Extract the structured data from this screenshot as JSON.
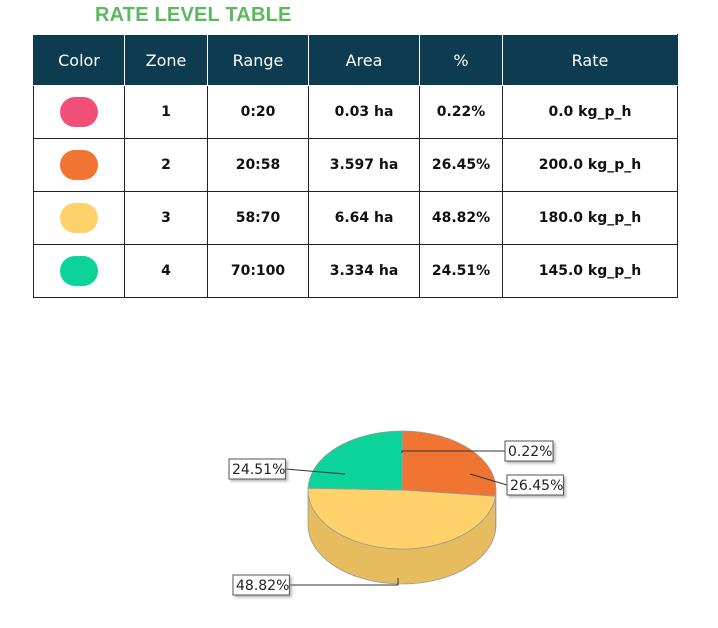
{
  "title": "RATE LEVEL TABLE",
  "table": {
    "headers": [
      "Color",
      "Zone",
      "Range",
      "Area",
      "%",
      "Rate"
    ],
    "rows": [
      {
        "color": "#f04f77",
        "zone": "1",
        "range": "0:20",
        "area": "0.03 ha",
        "pct": "0.22%",
        "rate": "0.0 kg_p_h"
      },
      {
        "color": "#f07432",
        "zone": "2",
        "range": "20:58",
        "area": "3.597 ha",
        "pct": "26.45%",
        "rate": "200.0 kg_p_h"
      },
      {
        "color": "#ffd16a",
        "zone": "3",
        "range": "58:70",
        "area": "6.64 ha",
        "pct": "48.82%",
        "rate": "180.0 kg_p_h"
      },
      {
        "color": "#0bd39a",
        "zone": "4",
        "range": "70:100",
        "area": "3.334 ha",
        "pct": "24.51%",
        "rate": "145.0 kg_p_h"
      }
    ]
  },
  "chart_data": {
    "type": "pie",
    "categories": [
      "1",
      "2",
      "3",
      "4"
    ],
    "values": [
      0.22,
      26.45,
      48.82,
      24.51
    ],
    "labels": [
      "0.22%",
      "26.45%",
      "48.82%",
      "24.51%"
    ],
    "colors": [
      "#f04f77",
      "#f07432",
      "#ffd16a",
      "#0bd39a"
    ],
    "title": "",
    "style": "3d"
  }
}
